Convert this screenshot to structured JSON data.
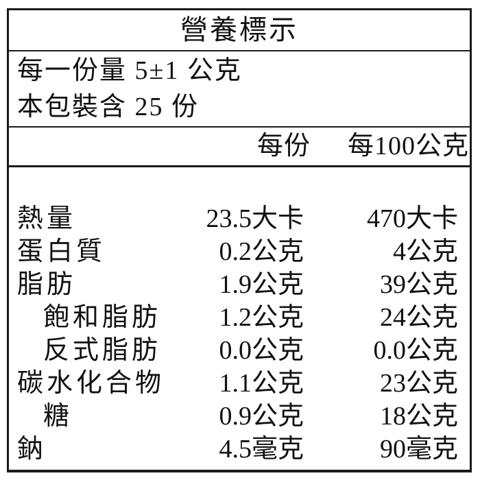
{
  "label": {
    "title": "營養標示",
    "serving_size_line": "每一份量 5±1 公克",
    "servings_per_package_line": "本包裝含 25 份",
    "columns": [
      "每份",
      "每100公克"
    ],
    "rows": [
      {
        "name": "熱量",
        "indent": false,
        "per_serving": "23.5大卡",
        "per_100g": "470大卡"
      },
      {
        "name": "蛋白質",
        "indent": false,
        "per_serving": "0.2公克",
        "per_100g": "4公克"
      },
      {
        "name": "脂肪",
        "indent": false,
        "per_serving": "1.9公克",
        "per_100g": "39公克"
      },
      {
        "name": "飽和脂肪",
        "indent": true,
        "per_serving": "1.2公克",
        "per_100g": "24公克"
      },
      {
        "name": "反式脂肪",
        "indent": true,
        "per_serving": "0.0公克",
        "per_100g": "0.0公克"
      },
      {
        "name": "碳水化合物",
        "indent": false,
        "per_serving": "1.1公克",
        "per_100g": "23公克"
      },
      {
        "name": "糖",
        "indent": true,
        "per_serving": "0.9公克",
        "per_100g": "18公克"
      },
      {
        "name": "鈉",
        "indent": false,
        "per_serving": "4.5毫克",
        "per_100g": "90毫克"
      }
    ],
    "colors": {
      "border": "#1a1a1a",
      "text": "#111111",
      "background": "#ffffff"
    }
  }
}
